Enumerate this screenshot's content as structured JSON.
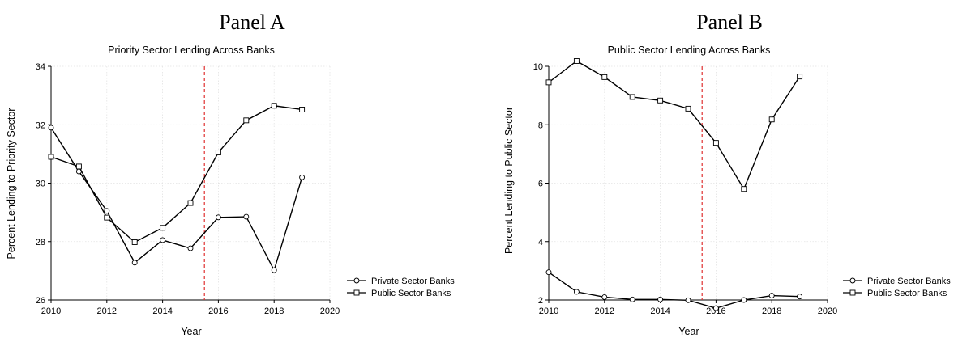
{
  "chart_data": [
    {
      "type": "line",
      "panel_title": "Panel A",
      "title": "Priority Sector Lending Across Banks",
      "xlabel": "Year",
      "ylabel": "Percent Lending to Priority Sector",
      "xlim": [
        2010,
        2020
      ],
      "ylim": [
        26,
        34
      ],
      "xticks": [
        2010,
        2012,
        2014,
        2016,
        2018,
        2020
      ],
      "yticks": [
        26,
        28,
        30,
        32,
        34
      ],
      "grid": true,
      "vline": {
        "x": 2015.5,
        "color": "#e03030",
        "style": "dashed"
      },
      "legend_position": "right",
      "x": [
        2010,
        2011,
        2012,
        2013,
        2014,
        2015,
        2016,
        2017,
        2018,
        2019
      ],
      "series": [
        {
          "name": "Private Sector Banks",
          "marker": "circle",
          "values": [
            31.9,
            30.4,
            29.05,
            27.28,
            28.05,
            27.77,
            28.83,
            28.85,
            27.02,
            30.2
          ]
        },
        {
          "name": "Public Sector Banks",
          "marker": "square",
          "values": [
            30.9,
            30.57,
            28.82,
            27.98,
            28.47,
            29.32,
            31.05,
            32.15,
            32.65,
            32.52
          ]
        }
      ]
    },
    {
      "type": "line",
      "panel_title": "Panel B",
      "title": "Public Sector Lending Across Banks",
      "xlabel": "Year",
      "ylabel": "Percent Lending to Public Sector",
      "xlim": [
        2010,
        2020
      ],
      "ylim": [
        2,
        10
      ],
      "xticks": [
        2010,
        2012,
        2014,
        2016,
        2018,
        2020
      ],
      "yticks": [
        2,
        4,
        6,
        8,
        10
      ],
      "grid": true,
      "vline": {
        "x": 2015.5,
        "color": "#e03030",
        "style": "dashed"
      },
      "legend_position": "right",
      "x": [
        2010,
        2011,
        2012,
        2013,
        2014,
        2015,
        2016,
        2017,
        2018,
        2019
      ],
      "series": [
        {
          "name": "Private Sector Banks",
          "marker": "circle",
          "values": [
            2.95,
            2.28,
            2.1,
            2.02,
            2.02,
            1.99,
            1.72,
            2.0,
            2.15,
            2.12
          ]
        },
        {
          "name": "Public Sector Banks",
          "marker": "square",
          "values": [
            9.45,
            10.18,
            9.63,
            8.95,
            8.83,
            8.55,
            7.38,
            5.8,
            8.18,
            9.65
          ]
        }
      ]
    }
  ]
}
